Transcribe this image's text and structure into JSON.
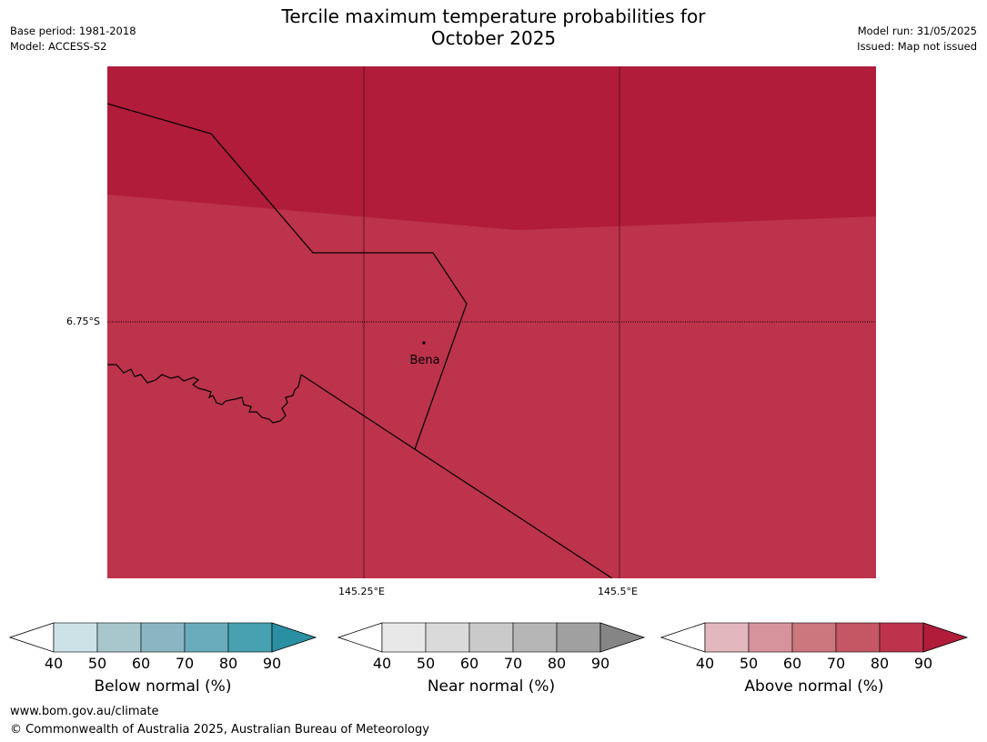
{
  "header": {
    "title_line1": "Tercile maximum temperature probabilities for",
    "title_line2": "October 2025",
    "base_period": "Base period: 1981-2018",
    "model": "Model: ACCESS-S2",
    "model_run": "Model run: 31/05/2025",
    "issued": "Issued: Map not issued"
  },
  "map": {
    "lat_label": "6.75°S",
    "lon_labels": [
      "145.25°E",
      "145.5°E"
    ],
    "place_name": "Bena",
    "colors": {
      "above_90": "#b01c3a",
      "above_80": "#bc334b"
    }
  },
  "legends": [
    {
      "name": "below-normal",
      "label": "Below normal (%)",
      "ticks": [
        "40",
        "50",
        "60",
        "70",
        "80",
        "90"
      ],
      "colors": [
        "#cce2e7",
        "#a8c7cd",
        "#8ab6c3",
        "#6aacbb",
        "#47a1b0",
        "#2b8fa3"
      ]
    },
    {
      "name": "near-normal",
      "label": "Near normal (%)",
      "ticks": [
        "40",
        "50",
        "60",
        "70",
        "80",
        "90"
      ],
      "colors": [
        "#e8e8e8",
        "#dadada",
        "#cacaca",
        "#b6b6b6",
        "#a0a0a0",
        "#858585"
      ]
    },
    {
      "name": "above-normal",
      "label": "Above normal (%)",
      "ticks": [
        "40",
        "50",
        "60",
        "70",
        "80",
        "90"
      ],
      "colors": [
        "#e2b7bd",
        "#d7939c",
        "#cc767e",
        "#c55764",
        "#bc334b",
        "#b01c3a"
      ]
    }
  ],
  "footer": {
    "url": "www.bom.gov.au/climate",
    "copyright": "© Commonwealth of Australia 2025, Australian Bureau of Meteorology"
  }
}
